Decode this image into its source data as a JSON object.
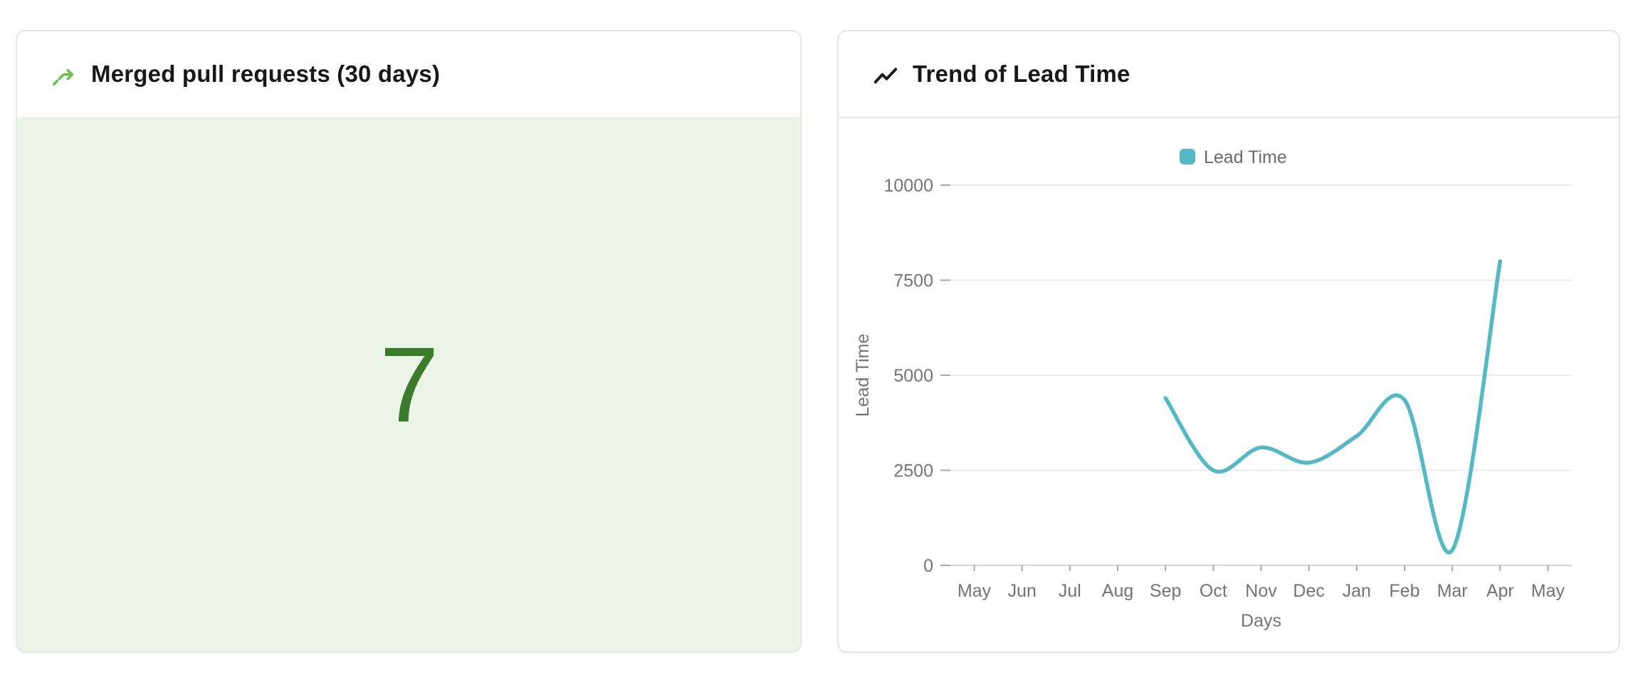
{
  "colors": {
    "accent_teal": "#54B9C5",
    "stat_value_green": "#3D7B2C",
    "stat_panel_green": "#EAF4E7",
    "merge_icon_green": "#6CC04E",
    "trend_icon_black": "#1A1A1A",
    "axis_text_gray": "#737373",
    "legend_text_gray": "#6B6B6B",
    "grid_gray": "#ECECEC",
    "axis_line_gray": "#D6D6D6",
    "tick_gray": "#A8A8A8",
    "card_border_gray": "#E5E5E9",
    "title_text": "#18181B"
  },
  "cards": {
    "merged_prs": {
      "icon": "git-merge-icon",
      "title": "Merged pull requests (30 days)",
      "value": "7"
    },
    "lead_time_trend": {
      "icon": "trend-line-icon",
      "title": "Trend of Lead Time"
    }
  },
  "chart_data": {
    "type": "line",
    "title": "Trend of Lead Time",
    "xlabel": "Days",
    "ylabel": "Lead Time",
    "categories": [
      "May",
      "Jun",
      "Jul",
      "Aug",
      "Sep",
      "Oct",
      "Nov",
      "Dec",
      "Jan",
      "Feb",
      "Mar",
      "Apr",
      "May"
    ],
    "series": [
      {
        "name": "Lead Time",
        "color": "#54B9C5",
        "values": [
          null,
          null,
          null,
          null,
          4400,
          2500,
          3100,
          2700,
          3400,
          4350,
          400,
          8000,
          null
        ]
      }
    ],
    "ylim": [
      0,
      10000
    ],
    "yticks": [
      0,
      2500,
      5000,
      7500,
      10000
    ],
    "grid": true,
    "smooth": true,
    "legend": {
      "position": "top",
      "entries": [
        "Lead Time"
      ]
    }
  }
}
